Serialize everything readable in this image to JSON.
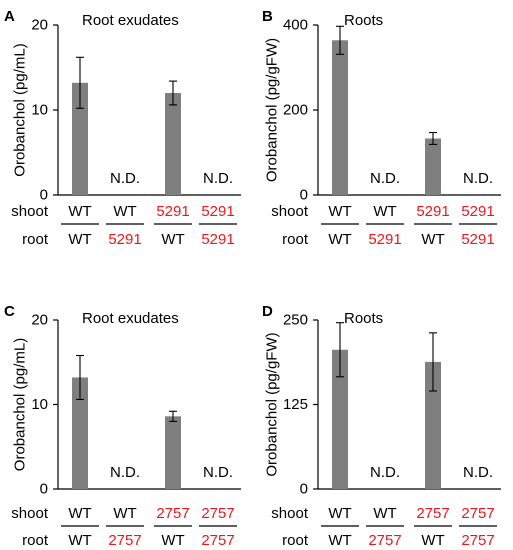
{
  "colors": {
    "bar": "#7f7f7f",
    "axis": "#000000",
    "mutant": "#e8191e",
    "wildtype": "#000000"
  },
  "row_labels": {
    "shoot": "shoot",
    "root": "root"
  },
  "chart_data": [
    {
      "panel": "A",
      "type": "bar",
      "title": "Root exudates",
      "ylabel": "Orobanchol (pg/mL)",
      "ylim": [
        0,
        20
      ],
      "yticks": [
        "0",
        "10",
        "20"
      ],
      "ytick_values": [
        0,
        10,
        20
      ],
      "categories": [
        {
          "shoot": "WT",
          "root": "WT"
        },
        {
          "shoot": "WT",
          "root": "5291"
        },
        {
          "shoot": "5291",
          "root": "WT"
        },
        {
          "shoot": "5291",
          "root": "5291"
        }
      ],
      "values": [
        13.2,
        null,
        12.0,
        null
      ],
      "errors": [
        3.0,
        null,
        1.4,
        null
      ],
      "not_detected_label": "N.D."
    },
    {
      "panel": "B",
      "type": "bar",
      "title": "Roots",
      "ylabel": "Orobanchol (pg/gFW)",
      "ylim": [
        0,
        400
      ],
      "yticks": [
        "0",
        "200",
        "400"
      ],
      "ytick_values": [
        0,
        200,
        400
      ],
      "categories": [
        {
          "shoot": "WT",
          "root": "WT"
        },
        {
          "shoot": "WT",
          "root": "5291"
        },
        {
          "shoot": "5291",
          "root": "WT"
        },
        {
          "shoot": "5291",
          "root": "5291"
        }
      ],
      "values": [
        364,
        null,
        133,
        null
      ],
      "errors": [
        33,
        null,
        14,
        null
      ],
      "not_detected_label": "N.D."
    },
    {
      "panel": "C",
      "type": "bar",
      "title": "Root exudates",
      "ylabel": "Orobanchol (pg/mL)",
      "ylim": [
        0,
        20
      ],
      "yticks": [
        "0",
        "10",
        "20"
      ],
      "ytick_values": [
        0,
        10,
        20
      ],
      "categories": [
        {
          "shoot": "WT",
          "root": "WT"
        },
        {
          "shoot": "WT",
          "root": "2757"
        },
        {
          "shoot": "2757",
          "root": "WT"
        },
        {
          "shoot": "2757",
          "root": "2757"
        }
      ],
      "values": [
        13.2,
        null,
        8.6,
        null
      ],
      "errors": [
        2.6,
        null,
        0.6,
        null
      ],
      "not_detected_label": "N.D."
    },
    {
      "panel": "D",
      "type": "bar",
      "title": "Roots",
      "ylabel": "Orobanchol (pg/gFW)",
      "ylim": [
        0,
        250
      ],
      "yticks": [
        "0",
        "125",
        "250"
      ],
      "ytick_values": [
        0,
        125,
        250
      ],
      "categories": [
        {
          "shoot": "WT",
          "root": "WT"
        },
        {
          "shoot": "WT",
          "root": "2757"
        },
        {
          "shoot": "2757",
          "root": "WT"
        },
        {
          "shoot": "2757",
          "root": "2757"
        }
      ],
      "values": [
        206,
        null,
        188,
        null
      ],
      "errors": [
        40,
        null,
        43,
        null
      ],
      "not_detected_label": "N.D."
    }
  ]
}
